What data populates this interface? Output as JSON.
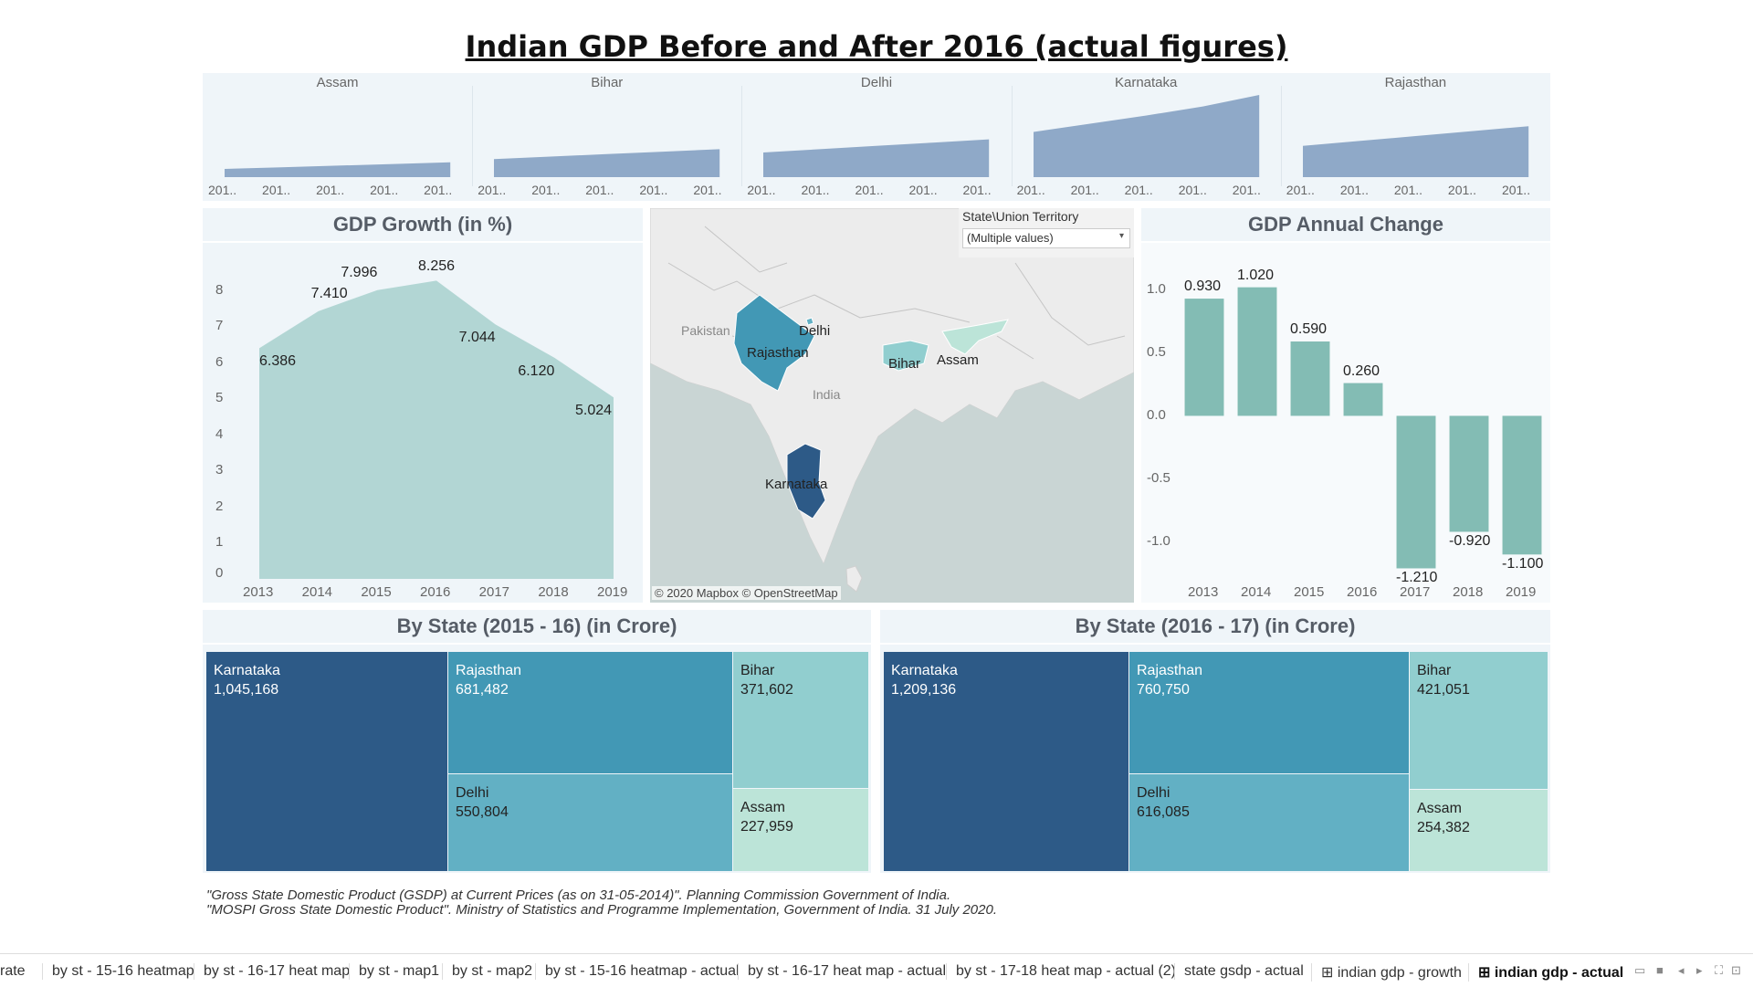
{
  "page": {
    "title": "Indian GDP Before and After 2016 (actual figures)",
    "citations": [
      "\"Gross State Domestic Product (GSDP) at Current Prices (as on 31-05-2014)\". Planning Commission Government of India.",
      "\"MOSPI Gross State Domestic Product\". Ministry of Statistics and Programme Implementation, Government of India. 31 July 2020."
    ]
  },
  "colors": {
    "panel_bg": "#eff5f9",
    "area_small": "#8fa9c8",
    "area_growth": "#b2d6d4",
    "bar": "#83bcb4",
    "karnataka": "#2d5a87",
    "rajasthan": "#4298b5",
    "delhi": "#62b0c4",
    "bihar": "#91cecf",
    "assam": "#bce4d8"
  },
  "map": {
    "filter_label": "State\\Union Territory",
    "filter_value": "(Multiple values)",
    "attribution": "© 2020 Mapbox © OpenStreetMap",
    "labels": [
      "Pakistan",
      "India",
      "Delhi",
      "Rajasthan",
      "Bihar",
      "Assam",
      "Karnataka"
    ]
  },
  "tabs": [
    "rate",
    "by st - 15-16 heatmap",
    "by st - 16-17 heat map",
    "by st - map1",
    "by st - map2",
    "by st - 15-16 heatmap - actual",
    "by st - 16-17 heat map - actual",
    "by st - 17-18 heat map - actual (2)",
    "state gsdp - actual",
    "⊞ indian gdp - growth",
    "⊞ indian gdp - actual"
  ],
  "chart_data": [
    {
      "type": "area",
      "panel": "small-multiples",
      "states": [
        "Assam",
        "Bihar",
        "Delhi",
        "Karnataka",
        "Rajasthan"
      ],
      "x_tick_labels": [
        "201..",
        "201..",
        "201..",
        "201..",
        "201.."
      ],
      "series": [
        {
          "name": "Assam",
          "values": [
            0.1,
            0.12,
            0.14,
            0.16,
            0.18
          ]
        },
        {
          "name": "Bihar",
          "values": [
            0.22,
            0.25,
            0.28,
            0.31,
            0.34
          ]
        },
        {
          "name": "Delhi",
          "values": [
            0.3,
            0.34,
            0.38,
            0.42,
            0.46
          ]
        },
        {
          "name": "Karnataka",
          "values": [
            0.55,
            0.65,
            0.75,
            0.86,
            1.0
          ]
        },
        {
          "name": "Rajasthan",
          "values": [
            0.38,
            0.44,
            0.5,
            0.56,
            0.62
          ]
        }
      ],
      "ylim": [
        0,
        1
      ]
    },
    {
      "type": "area",
      "title": "GDP Growth (in %)",
      "x": [
        "2013",
        "2014",
        "2015",
        "2016",
        "2017",
        "2018",
        "2019"
      ],
      "values": [
        6.386,
        7.41,
        7.996,
        8.256,
        7.044,
        6.12,
        5.024
      ],
      "value_labels": [
        "6.386",
        "7.410",
        "7.996",
        "8.256",
        "7.044",
        "6.120",
        "5.024"
      ],
      "y_ticks": [
        "0",
        "1",
        "2",
        "3",
        "4",
        "5",
        "6",
        "7",
        "8"
      ],
      "ylim": [
        0,
        9.05
      ],
      "grid": false
    },
    {
      "type": "bar",
      "title": "GDP Annual Change",
      "categories": [
        "2013",
        "2014",
        "2015",
        "2016",
        "2017",
        "2018",
        "2019"
      ],
      "values": [
        0.93,
        1.02,
        0.59,
        0.26,
        -1.21,
        -0.92,
        -1.1
      ],
      "value_labels": [
        "0.930",
        "1.020",
        "0.590",
        "0.260",
        "-1.210",
        "-0.920",
        "-1.100"
      ],
      "y_ticks": [
        "1.0",
        "0.5",
        "0.0",
        "-0.5",
        "-1.0"
      ],
      "ylim": [
        -1.25,
        1.3
      ],
      "grid": false
    },
    {
      "type": "heatmap",
      "title": "By State (2015 - 16) (in Crore)",
      "categories": [
        "Karnataka",
        "Rajasthan",
        "Delhi",
        "Bihar",
        "Assam"
      ],
      "values": [
        1045168,
        681482,
        550804,
        371602,
        227959
      ],
      "value_labels": [
        "1,045,168",
        "681,482",
        "550,804",
        "371,602",
        "227,959"
      ]
    },
    {
      "type": "heatmap",
      "title": "By State (2016 - 17) (in Crore)",
      "categories": [
        "Karnataka",
        "Rajasthan",
        "Delhi",
        "Bihar",
        "Assam"
      ],
      "values": [
        1209136,
        760750,
        616085,
        421051,
        254382
      ],
      "value_labels": [
        "1,209,136",
        "760,750",
        "616,085",
        "421,051",
        "254,382"
      ]
    }
  ]
}
